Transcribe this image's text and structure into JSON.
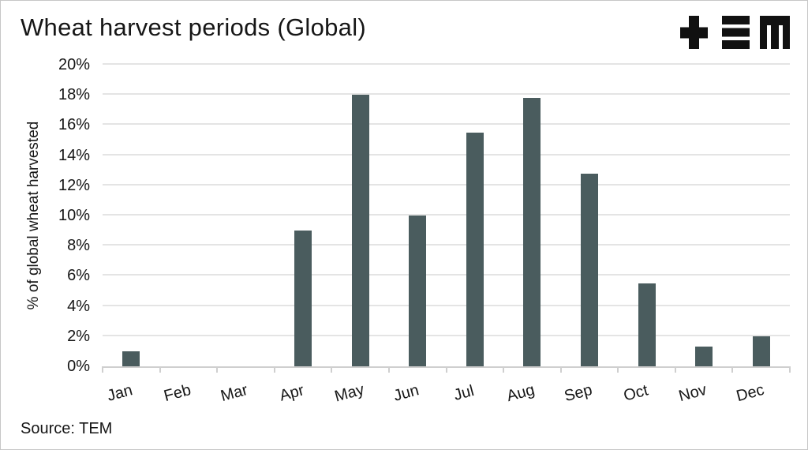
{
  "header": {
    "title": "Wheat harvest periods (Global)",
    "logo_text": "TEM"
  },
  "chart_data": {
    "type": "bar",
    "title": "Wheat harvest periods (Global)",
    "categories": [
      "Jan",
      "Feb",
      "Mar",
      "Apr",
      "May",
      "Jun",
      "Jul",
      "Aug",
      "Sep",
      "Oct",
      "Nov",
      "Dec"
    ],
    "values": [
      1,
      0,
      0,
      9,
      18,
      10,
      15.5,
      17.8,
      12.8,
      5.5,
      1.3,
      2
    ],
    "xlabel": "",
    "ylabel": "% of global wheat harvested",
    "ylim": [
      0,
      20
    ],
    "ytick_step": 2,
    "ytick_suffix": "%",
    "xtick_rotation": -15,
    "grid": true,
    "legend": "none",
    "bar_color": "#4a5c5e",
    "grid_color": "#e4e4e4",
    "axis_color": "#cfcfcf",
    "text_color": "#161616",
    "logo_color": "#111111"
  },
  "footer": {
    "source": "Source: TEM"
  }
}
